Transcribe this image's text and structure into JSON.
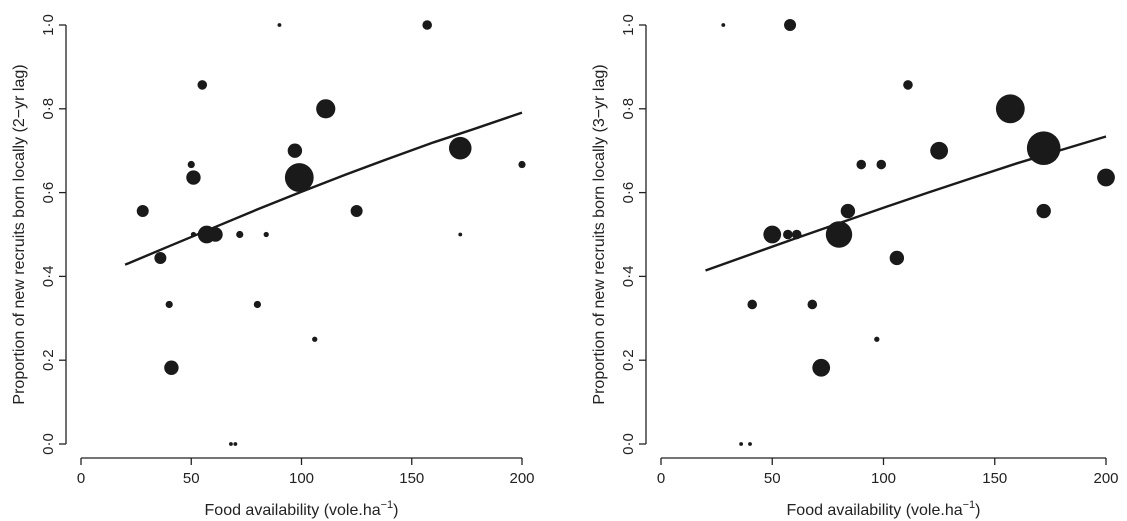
{
  "chart_data": [
    {
      "type": "scatter",
      "xlabel": "Food availability (vole.ha",
      "xlabel_sup": "−1",
      "xlabel_close": ")",
      "ylabel": "Proportion of new recruits born locally (2−yr lag)",
      "xlim": [
        0,
        200
      ],
      "ylim": [
        0,
        1
      ],
      "xticks": [
        "0",
        "50",
        "100",
        "150",
        "200"
      ],
      "yticks": [
        "0·0",
        "0·2",
        "0·4",
        "0·6",
        "0·8",
        "1·0"
      ],
      "points": [
        {
          "x": 28,
          "y": 0.556,
          "size": 2
        },
        {
          "x": 36,
          "y": 0.444,
          "size": 2
        },
        {
          "x": 40,
          "y": 0.333,
          "size": 1
        },
        {
          "x": 41,
          "y": 0.182,
          "size": 2.5
        },
        {
          "x": 50,
          "y": 0.667,
          "size": 1
        },
        {
          "x": 51,
          "y": 0.636,
          "size": 2.5
        },
        {
          "x": 51,
          "y": 0.5,
          "size": 0.6
        },
        {
          "x": 55,
          "y": 0.857,
          "size": 1.5
        },
        {
          "x": 57,
          "y": 0.5,
          "size": 3.2
        },
        {
          "x": 61,
          "y": 0.5,
          "size": 2.5
        },
        {
          "x": 68,
          "y": 0.0,
          "size": 0.3
        },
        {
          "x": 70,
          "y": 0.0,
          "size": 0.3
        },
        {
          "x": 72,
          "y": 0.5,
          "size": 1
        },
        {
          "x": 80,
          "y": 0.333,
          "size": 1
        },
        {
          "x": 84,
          "y": 0.5,
          "size": 0.6
        },
        {
          "x": 90,
          "y": 1.0,
          "size": 0.3
        },
        {
          "x": 97,
          "y": 0.7,
          "size": 2.5
        },
        {
          "x": 99,
          "y": 0.636,
          "size": 5.5
        },
        {
          "x": 106,
          "y": 0.25,
          "size": 0.6
        },
        {
          "x": 111,
          "y": 0.8,
          "size": 3.5
        },
        {
          "x": 125,
          "y": 0.556,
          "size": 2
        },
        {
          "x": 157,
          "y": 1.0,
          "size": 1.5
        },
        {
          "x": 172,
          "y": 0.5,
          "size": 0.3
        },
        {
          "x": 172,
          "y": 0.706,
          "size": 4.2
        },
        {
          "x": 200,
          "y": 0.667,
          "size": 1
        }
      ],
      "fit_line": {
        "x": [
          20,
          40,
          60,
          80,
          100,
          120,
          140,
          160,
          180,
          200
        ],
        "y": [
          0.428,
          0.472,
          0.516,
          0.56,
          0.602,
          0.643,
          0.682,
          0.72,
          0.755,
          0.791
        ]
      }
    },
    {
      "type": "scatter",
      "xlabel": "Food availability (vole.ha",
      "xlabel_sup": "−1",
      "xlabel_close": ")",
      "ylabel": "Proportion of new recruits born locally (3−yr lag)",
      "xlim": [
        0,
        200
      ],
      "ylim": [
        0,
        1
      ],
      "xticks": [
        "0",
        "50",
        "100",
        "150",
        "200"
      ],
      "yticks": [
        "0·0",
        "0·2",
        "0·4",
        "0·6",
        "0·8",
        "1·0"
      ],
      "points": [
        {
          "x": 28,
          "y": 1.0,
          "size": 0.3
        },
        {
          "x": 36,
          "y": 0.0,
          "size": 0.3
        },
        {
          "x": 40,
          "y": 0.0,
          "size": 0.3
        },
        {
          "x": 41,
          "y": 0.333,
          "size": 1.5
        },
        {
          "x": 50,
          "y": 0.5,
          "size": 3.2
        },
        {
          "x": 57,
          "y": 0.5,
          "size": 1.5
        },
        {
          "x": 58,
          "y": 1.0,
          "size": 2
        },
        {
          "x": 61,
          "y": 0.5,
          "size": 1.5
        },
        {
          "x": 68,
          "y": 0.333,
          "size": 1.5
        },
        {
          "x": 72,
          "y": 0.182,
          "size": 3.2
        },
        {
          "x": 80,
          "y": 0.5,
          "size": 5
        },
        {
          "x": 84,
          "y": 0.556,
          "size": 2.5
        },
        {
          "x": 90,
          "y": 0.667,
          "size": 1.5
        },
        {
          "x": 97,
          "y": 0.25,
          "size": 0.6
        },
        {
          "x": 99,
          "y": 0.667,
          "size": 1.5
        },
        {
          "x": 106,
          "y": 0.444,
          "size": 2.5
        },
        {
          "x": 111,
          "y": 0.857,
          "size": 1.5
        },
        {
          "x": 125,
          "y": 0.7,
          "size": 3.2
        },
        {
          "x": 157,
          "y": 0.8,
          "size": 5.5
        },
        {
          "x": 172,
          "y": 0.706,
          "size": 6.5
        },
        {
          "x": 172,
          "y": 0.556,
          "size": 2.5
        },
        {
          "x": 200,
          "y": 0.636,
          "size": 3.2
        }
      ],
      "fit_line": {
        "x": [
          20,
          40,
          60,
          80,
          100,
          120,
          140,
          160,
          180,
          200
        ],
        "y": [
          0.414,
          0.452,
          0.49,
          0.527,
          0.564,
          0.6,
          0.635,
          0.67,
          0.702,
          0.734
        ]
      }
    }
  ],
  "colors": {
    "points": "#1a1a1a",
    "line": "#1a1a1a",
    "axis": "#222222",
    "background": "#ffffff"
  }
}
